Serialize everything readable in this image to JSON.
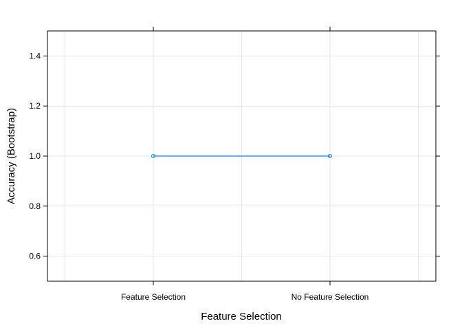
{
  "chart_data": {
    "type": "line",
    "categories": [
      "Feature Selection",
      "No Feature Selection"
    ],
    "series": [
      {
        "values": [
          1.0,
          1.0
        ]
      }
    ],
    "xlabel": "Feature Selection",
    "ylabel": "Accuracy (Bootstrap)",
    "ylim": [
      0.5,
      1.5
    ],
    "yticks": [
      0.6,
      0.8,
      1.0,
      1.2,
      1.4
    ],
    "ytick_labels": [
      "0.6",
      "0.8",
      "1.0",
      "1.2",
      "1.4"
    ],
    "grid": true,
    "colors": {
      "series": "#0080ff",
      "grid": "#e6e6e6",
      "axis": "#000000"
    }
  }
}
